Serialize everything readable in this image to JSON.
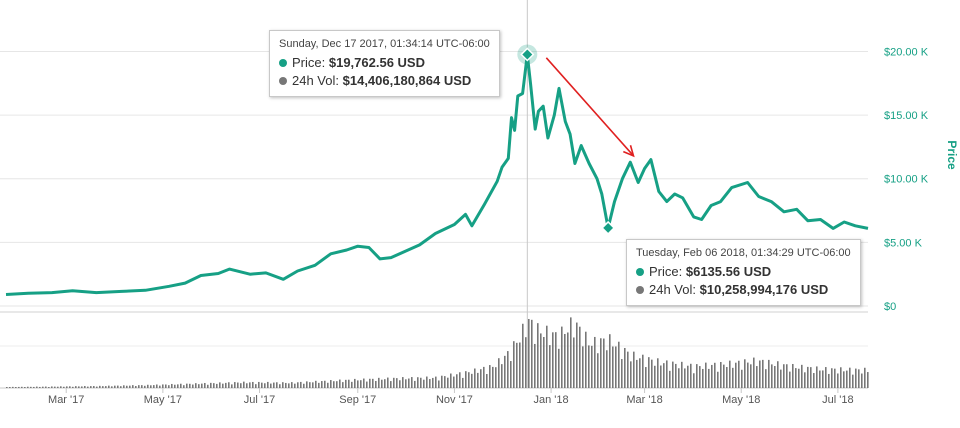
{
  "chart_data": {
    "type": "line",
    "ylabel": "Price",
    "ylim": [
      0,
      22000
    ],
    "y_ticks": [
      "$0",
      "$5.00 K",
      "$10.00 K",
      "$15.00 K",
      "$20.00 K"
    ],
    "y_tick_values": [
      0,
      5000,
      10000,
      15000,
      20000
    ],
    "x_ticks": [
      "Mar '17",
      "May '17",
      "Jul '17",
      "Sep '17",
      "Nov '17",
      "Jan '18",
      "Mar '18",
      "May '18",
      "Jul '18"
    ],
    "x_tick_dates": [
      "2017-03-01",
      "2017-05-01",
      "2017-07-01",
      "2017-09-01",
      "2017-11-01",
      "2018-01-01",
      "2018-03-01",
      "2018-05-01",
      "2018-07-01"
    ],
    "xlim": [
      "2017-01-22",
      "2018-07-20"
    ],
    "grid": true,
    "line_color": "#16a085",
    "volume_color": "#777777",
    "series": [
      {
        "values_x": [
          "2017-01-22",
          "2017-02-05",
          "2017-02-20",
          "2017-03-05",
          "2017-03-20",
          "2017-04-05",
          "2017-04-20",
          "2017-05-05",
          "2017-05-15",
          "2017-05-25",
          "2017-06-05",
          "2017-06-12",
          "2017-06-25",
          "2017-07-05",
          "2017-07-16",
          "2017-07-25",
          "2017-08-05",
          "2017-08-15",
          "2017-08-25",
          "2017-09-01",
          "2017-09-08",
          "2017-09-15",
          "2017-09-22",
          "2017-10-01",
          "2017-10-10",
          "2017-10-20",
          "2017-11-01",
          "2017-11-08",
          "2017-11-12",
          "2017-11-20",
          "2017-11-28",
          "2017-12-01",
          "2017-12-05",
          "2017-12-07",
          "2017-12-09",
          "2017-12-11",
          "2017-12-14",
          "2017-12-17",
          "2017-12-19",
          "2017-12-22",
          "2017-12-24",
          "2017-12-27",
          "2017-12-30",
          "2018-01-03",
          "2018-01-06",
          "2018-01-10",
          "2018-01-13",
          "2018-01-16",
          "2018-01-20",
          "2018-01-25",
          "2018-01-30",
          "2018-02-02",
          "2018-02-06",
          "2018-02-10",
          "2018-02-15",
          "2018-02-20",
          "2018-02-25",
          "2018-03-01",
          "2018-03-05",
          "2018-03-10",
          "2018-03-15",
          "2018-03-20",
          "2018-03-25",
          "2018-04-01",
          "2018-04-06",
          "2018-04-12",
          "2018-04-18",
          "2018-04-25",
          "2018-05-05",
          "2018-05-12",
          "2018-05-20",
          "2018-05-28",
          "2018-06-05",
          "2018-06-12",
          "2018-06-20",
          "2018-06-28",
          "2018-07-05",
          "2018-07-12",
          "2018-07-20"
        ],
        "values": [
          900,
          1000,
          1050,
          1200,
          1050,
          1150,
          1230,
          1550,
          1800,
          2400,
          2550,
          2900,
          2500,
          2600,
          2100,
          2750,
          3200,
          4100,
          4400,
          4700,
          4600,
          3700,
          3800,
          4300,
          4800,
          5700,
          6400,
          7200,
          6300,
          8000,
          9800,
          10900,
          11600,
          14800,
          13800,
          16500,
          16700,
          19762.56,
          17500,
          13900,
          15300,
          15700,
          13200,
          15000,
          17100,
          14500,
          13500,
          11200,
          12600,
          11200,
          10000,
          8800,
          6135.56,
          8200,
          10000,
          11300,
          9700,
          10800,
          11500,
          9000,
          8200,
          8800,
          8500,
          7000,
          6800,
          7900,
          8200,
          9300,
          9700,
          8600,
          8200,
          7400,
          7600,
          6700,
          6800,
          6100,
          6600,
          6300,
          6100
        ]
      }
    ],
    "volume": {
      "x": [
        "2017-01-22",
        "2017-02-20",
        "2017-03-20",
        "2017-04-20",
        "2017-05-20",
        "2017-06-20",
        "2017-07-20",
        "2017-08-20",
        "2017-09-20",
        "2017-10-20",
        "2017-11-10",
        "2017-11-25",
        "2017-12-05",
        "2017-12-12",
        "2017-12-17",
        "2017-12-22",
        "2018-01-05",
        "2018-01-15",
        "2018-01-25",
        "2018-02-06",
        "2018-02-20",
        "2018-03-10",
        "2018-04-01",
        "2018-04-25",
        "2018-05-10",
        "2018-06-01",
        "2018-06-20",
        "2018-07-20"
      ],
      "values": [
        0.2,
        0.3,
        0.4,
        0.6,
        0.9,
        1.2,
        1.1,
        1.6,
        2.0,
        2.2,
        3.4,
        4.6,
        7.5,
        11.0,
        14.4,
        12.5,
        11.0,
        14.0,
        9.5,
        10.3,
        7.0,
        5.5,
        4.6,
        5.2,
        5.8,
        4.6,
        4.0,
        3.8
      ]
    },
    "tooltips": [
      {
        "date": "Sunday, Dec 17 2017, 01:34:14 UTC-06:00",
        "price_label": "Price:",
        "price_value": "$19,762.56 USD",
        "vol_label": "24h Vol:",
        "vol_value": "$14,406,180,864 USD",
        "at_date": "2017-12-17",
        "at_price": 19762.56
      },
      {
        "date": "Tuesday, Feb 06 2018, 01:34:29 UTC-06:00",
        "price_label": "Price:",
        "price_value": "$6135.56 USD",
        "vol_label": "24h Vol:",
        "vol_value": "$10,258,994,176 USD",
        "at_date": "2018-02-06",
        "at_price": 6135.56
      }
    ],
    "annotation_arrow": {
      "from_date": "2017-12-29",
      "from_price": 19500,
      "to_date": "2018-02-22",
      "to_price": 11800,
      "color": "#e02020"
    }
  }
}
